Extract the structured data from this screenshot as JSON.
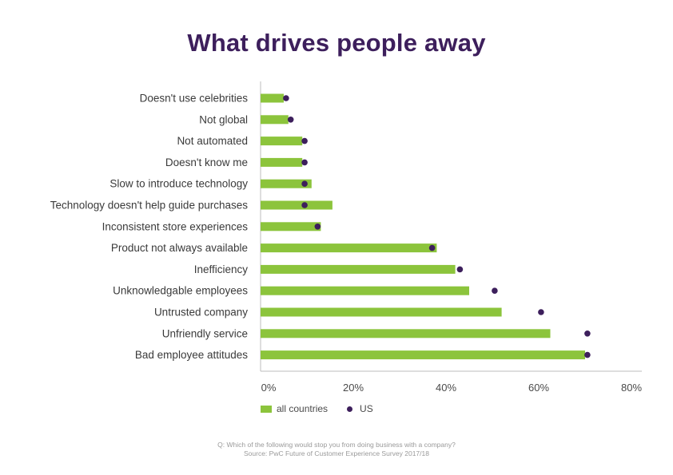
{
  "chart_data": {
    "type": "bar",
    "orientation": "horizontal",
    "title": "What drives people away",
    "categories": [
      "Doesn't use celebrities",
      "Not global",
      "Not automated",
      "Doesn't know me",
      "Slow to introduce technology",
      "Technology doesn't help guide purchases",
      "Inconsistent store experiences",
      "Product not always available",
      "Inefficiency",
      "Unknowledgable employees",
      "Untrusted company",
      "Unfriendly service",
      "Bad employee attitudes"
    ],
    "series": [
      {
        "name": "all countries",
        "mark": "bar",
        "color": "#8cc43c",
        "values": [
          5,
          6,
          9,
          9,
          11,
          15.5,
          13,
          38,
          42,
          45,
          52,
          62.5,
          70
        ]
      },
      {
        "name": "US",
        "mark": "dot",
        "color": "#3d1f5c",
        "values": [
          5.5,
          6.5,
          9.5,
          9.5,
          9.5,
          9.5,
          12.3,
          37,
          43,
          50.5,
          60.5,
          70.5,
          70.5
        ]
      }
    ],
    "xlim": [
      0,
      80
    ],
    "xticks": [
      "0%",
      "20%",
      "40%",
      "60%",
      "80%"
    ],
    "xtick_values": [
      0,
      20,
      40,
      60,
      80
    ],
    "grid": false,
    "legend_position": "bottom-left"
  },
  "footer": {
    "question": "Q: Which of the following would stop you from doing business with a company?",
    "source": "Source: PwC Future of Customer Experience Survey 2017/18"
  }
}
